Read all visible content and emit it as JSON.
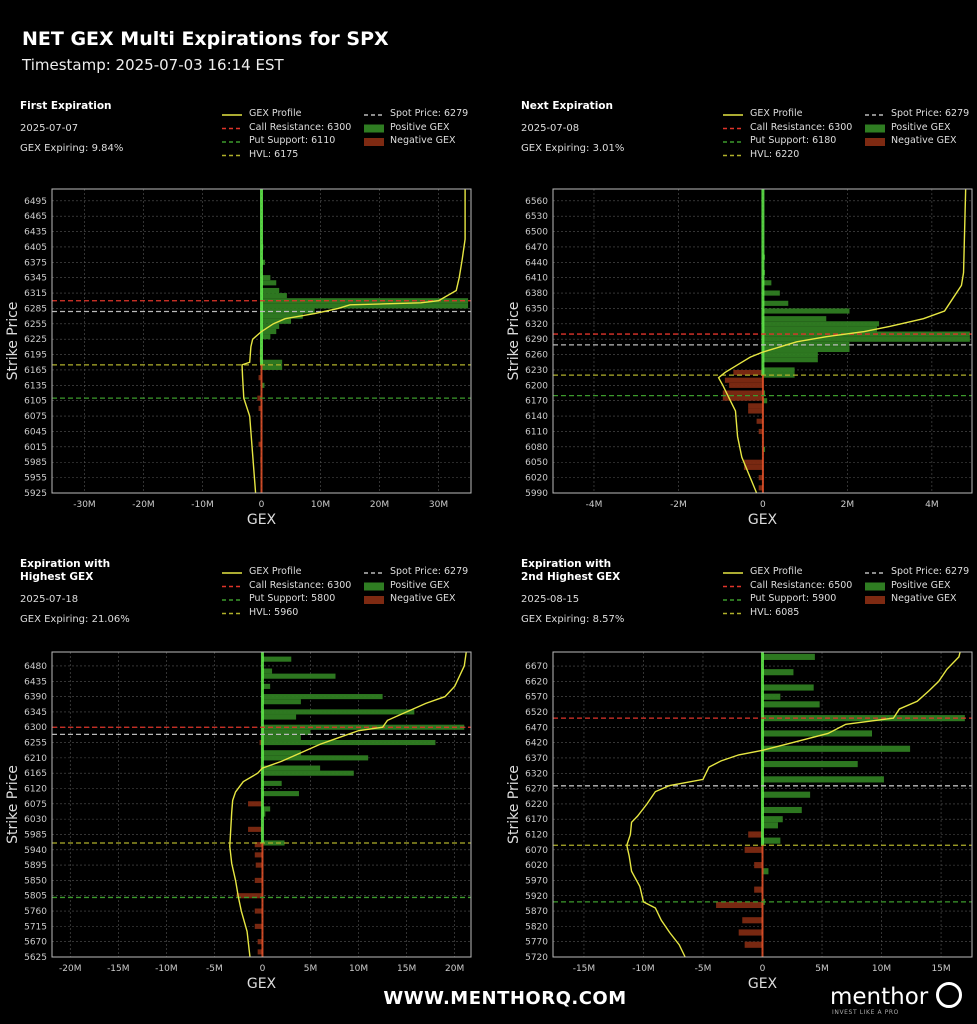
{
  "header": {
    "title": "NET GEX Multi Expirations for SPX",
    "timestamp": "Timestamp: 2025-07-03 16:14 EST"
  },
  "footer": {
    "url": "WWW.MENTHORQ.COM",
    "logo": "menthor",
    "tagline": "INVEST LIKE A PRO"
  },
  "colors": {
    "positive": "#2f7d22",
    "positive_light": "#62ee4c",
    "negative": "#7e2a12",
    "negative_light": "#e8532a",
    "profile": "#e6e642",
    "call_resistance": "#e0342a",
    "put_support": "#3c9a2c",
    "hvl": "#b0b02a",
    "spot": "#bbbbbb",
    "grid": "#555555"
  },
  "chart_data": [
    {
      "type": "bar",
      "panel_title": [
        "First Expiration"
      ],
      "date": "2025-07-07",
      "gex_expiring": "GEX Expiring: 9.84%",
      "xlabel": "GEX",
      "ylabel": "Strike Price",
      "xlim": [
        -35.5,
        35.5
      ],
      "ylim": [
        5925,
        6518
      ],
      "grid": true,
      "legend": "top",
      "xticks": [
        -30,
        -20,
        -10,
        0,
        10,
        20,
        30
      ],
      "xtick_labels": [
        "-30M",
        "-20M",
        "-10M",
        "0",
        "10M",
        "20M",
        "30M"
      ],
      "yticks": [
        5925,
        5955,
        5985,
        6015,
        6045,
        6075,
        6105,
        6135,
        6165,
        6195,
        6225,
        6255,
        6285,
        6315,
        6345,
        6375,
        6405,
        6435,
        6465,
        6495
      ],
      "legend_labels": {
        "profile": "GEX Profile",
        "call": "Call Resistance: 6300",
        "put": "Put Support: 6110",
        "hvl": "HVL: 6175",
        "spot": "Spot Price: 6279",
        "pos": "Positive GEX",
        "neg": "Negative GEX"
      },
      "levels": {
        "call_resistance": 6300,
        "put_support": 6110,
        "hvl": 6175,
        "spot": 6279
      },
      "bin": 10,
      "bars": [
        [
          6405,
          0.3
        ],
        [
          6375,
          0.6
        ],
        [
          6345,
          1.5
        ],
        [
          6335,
          2.5
        ],
        [
          6320,
          3
        ],
        [
          6310,
          4.3
        ],
        [
          6300,
          35
        ],
        [
          6290,
          35
        ],
        [
          6280,
          9
        ],
        [
          6270,
          7
        ],
        [
          6260,
          5
        ],
        [
          6250,
          3
        ],
        [
          6240,
          2.5
        ],
        [
          6230,
          1.5
        ],
        [
          6180,
          3.5
        ],
        [
          6170,
          3.5
        ],
        [
          6135,
          0.5
        ],
        [
          6200,
          -0.3
        ],
        [
          6185,
          -0.3
        ],
        [
          6150,
          -0.5
        ],
        [
          6110,
          -0.7
        ],
        [
          6090,
          -0.5
        ],
        [
          6020,
          -0.5
        ],
        [
          5990,
          -0.2
        ]
      ],
      "profile": [
        [
          5925,
          -1
        ],
        [
          6000,
          -1.5
        ],
        [
          6075,
          -2
        ],
        [
          6110,
          -3
        ],
        [
          6150,
          -3.2
        ],
        [
          6175,
          -3.3
        ],
        [
          6180,
          -2
        ],
        [
          6210,
          -1.8
        ],
        [
          6225,
          -1.5
        ],
        [
          6240,
          0
        ],
        [
          6255,
          2
        ],
        [
          6265,
          4
        ],
        [
          6275,
          9
        ],
        [
          6285,
          13
        ],
        [
          6292,
          15
        ],
        [
          6296,
          27
        ],
        [
          6300,
          30
        ],
        [
          6320,
          33
        ],
        [
          6345,
          33.5
        ],
        [
          6380,
          34
        ],
        [
          6420,
          34.5
        ],
        [
          6518,
          34.5
        ]
      ]
    },
    {
      "type": "bar",
      "panel_title": [
        "Next Expiration"
      ],
      "date": "2025-07-08",
      "gex_expiring": "GEX Expiring: 3.01%",
      "xlabel": "GEX",
      "ylabel": "Strike Price",
      "xlim": [
        -4.97,
        4.95
      ],
      "ylim": [
        5990,
        6583
      ],
      "grid": true,
      "legend": "top",
      "xticks": [
        -4,
        -2,
        0,
        2,
        4
      ],
      "xtick_labels": [
        "-4M",
        "-2M",
        "0",
        "2M",
        "4M"
      ],
      "yticks": [
        5990,
        6020,
        6050,
        6080,
        6110,
        6140,
        6170,
        6200,
        6230,
        6260,
        6290,
        6320,
        6350,
        6380,
        6410,
        6440,
        6470,
        6500,
        6530,
        6560
      ],
      "legend_labels": {
        "profile": "GEX Profile",
        "call": "Call Resistance: 6300",
        "put": "Put Support: 6180",
        "hvl": "HVL: 6220",
        "spot": "Spot Price: 6279",
        "pos": "Positive GEX",
        "neg": "Negative GEX"
      },
      "levels": {
        "call_resistance": 6300,
        "put_support": 6180,
        "hvl": 6220,
        "spot": 6279
      },
      "bin": 10,
      "bars": [
        [
          6450,
          0.05
        ],
        [
          6420,
          0.05
        ],
        [
          6400,
          0.2
        ],
        [
          6380,
          0.4
        ],
        [
          6360,
          0.6
        ],
        [
          6345,
          2.05
        ],
        [
          6330,
          1.5
        ],
        [
          6320,
          2.75
        ],
        [
          6310,
          2.7
        ],
        [
          6300,
          4.9
        ],
        [
          6290,
          4.9
        ],
        [
          6280,
          2.05
        ],
        [
          6270,
          2.05
        ],
        [
          6260,
          1.3
        ],
        [
          6250,
          1.3
        ],
        [
          6230,
          0.75
        ],
        [
          6220,
          0.75
        ],
        [
          6185,
          0.05
        ],
        [
          6170,
          0.1
        ],
        [
          6075,
          0.05
        ],
        [
          6225,
          -0.7
        ],
        [
          6210,
          -0.9
        ],
        [
          6200,
          -0.8
        ],
        [
          6185,
          -0.95
        ],
        [
          6175,
          -0.95
        ],
        [
          6160,
          -0.35
        ],
        [
          6150,
          -0.35
        ],
        [
          6130,
          -0.15
        ],
        [
          6110,
          -0.1
        ],
        [
          6050,
          -0.45
        ],
        [
          6040,
          -0.45
        ],
        [
          6020,
          -0.1
        ],
        [
          6000,
          -0.1
        ]
      ],
      "profile": [
        [
          5990,
          -0.15
        ],
        [
          6030,
          -0.35
        ],
        [
          6060,
          -0.5
        ],
        [
          6100,
          -0.6
        ],
        [
          6150,
          -0.65
        ],
        [
          6175,
          -0.8
        ],
        [
          6200,
          -0.95
        ],
        [
          6215,
          -1.05
        ],
        [
          6225,
          -0.9
        ],
        [
          6240,
          -0.6
        ],
        [
          6255,
          -0.3
        ],
        [
          6265,
          0
        ],
        [
          6275,
          0.4
        ],
        [
          6285,
          0.8
        ],
        [
          6295,
          1.5
        ],
        [
          6305,
          2.4
        ],
        [
          6315,
          3.0
        ],
        [
          6330,
          3.8
        ],
        [
          6345,
          4.3
        ],
        [
          6370,
          4.5
        ],
        [
          6395,
          4.7
        ],
        [
          6420,
          4.75
        ],
        [
          6583,
          4.8
        ]
      ]
    },
    {
      "type": "bar",
      "panel_title": [
        "Expiration with",
        "Highest GEX"
      ],
      "date": "2025-07-18",
      "gex_expiring": "GEX Expiring: 21.06%",
      "xlabel": "GEX",
      "ylabel": "Strike Price",
      "xlim": [
        -21.9,
        21.7
      ],
      "ylim": [
        5625,
        6521
      ],
      "grid": true,
      "legend": "top",
      "xticks": [
        -20,
        -15,
        -10,
        -5,
        0,
        5,
        10,
        15,
        20
      ],
      "xtick_labels": [
        "-20M",
        "-15M",
        "-10M",
        "-5M",
        "0",
        "5M",
        "10M",
        "15M",
        "20M"
      ],
      "yticks": [
        5625,
        5670,
        5715,
        5760,
        5805,
        5850,
        5895,
        5940,
        5985,
        6030,
        6075,
        6120,
        6165,
        6210,
        6255,
        6300,
        6345,
        6390,
        6435,
        6480
      ],
      "legend_labels": {
        "profile": "GEX Profile",
        "call": "Call Resistance: 6300",
        "put": "Put Support: 5800",
        "hvl": "HVL: 5960",
        "spot": "Spot Price: 6279",
        "pos": "Positive GEX",
        "neg": "Negative GEX"
      },
      "levels": {
        "call_resistance": 6300,
        "put_support": 5800,
        "hvl": 5960,
        "spot": 6279
      },
      "bin": 15,
      "bars": [
        [
          6500,
          3
        ],
        [
          6465,
          1
        ],
        [
          6450,
          7.6
        ],
        [
          6420,
          0.8
        ],
        [
          6390,
          12.5
        ],
        [
          6375,
          4
        ],
        [
          6345,
          15.8
        ],
        [
          6330,
          3.5
        ],
        [
          6300,
          21
        ],
        [
          6285,
          5
        ],
        [
          6270,
          4
        ],
        [
          6255,
          18
        ],
        [
          6225,
          4
        ],
        [
          6210,
          11
        ],
        [
          6180,
          6
        ],
        [
          6165,
          9.5
        ],
        [
          6135,
          2
        ],
        [
          6105,
          3.8
        ],
        [
          6060,
          0.8
        ],
        [
          6045,
          0.3
        ],
        [
          5960,
          2.3
        ],
        [
          6255,
          -0.3
        ],
        [
          6180,
          -0.2
        ],
        [
          6075,
          -1.5
        ],
        [
          6000,
          -1.5
        ],
        [
          5955,
          -0.8
        ],
        [
          5925,
          -0.8
        ],
        [
          5895,
          -0.7
        ],
        [
          5850,
          -0.8
        ],
        [
          5805,
          -2.7
        ],
        [
          5760,
          -0.8
        ],
        [
          5715,
          -0.8
        ],
        [
          5670,
          -0.5
        ],
        [
          5640,
          -0.5
        ]
      ],
      "profile": [
        [
          5625,
          -1.3
        ],
        [
          5700,
          -1.6
        ],
        [
          5760,
          -2.2
        ],
        [
          5800,
          -2.5
        ],
        [
          5850,
          -2.8
        ],
        [
          5900,
          -3.2
        ],
        [
          5950,
          -3.4
        ],
        [
          6000,
          -3.3
        ],
        [
          6050,
          -3.2
        ],
        [
          6085,
          -3.1
        ],
        [
          6110,
          -2.8
        ],
        [
          6140,
          -2.0
        ],
        [
          6165,
          -0.5
        ],
        [
          6180,
          0
        ],
        [
          6200,
          2
        ],
        [
          6225,
          4
        ],
        [
          6250,
          6
        ],
        [
          6270,
          8
        ],
        [
          6290,
          10
        ],
        [
          6300,
          12.5
        ],
        [
          6320,
          13
        ],
        [
          6345,
          15
        ],
        [
          6370,
          17
        ],
        [
          6390,
          19
        ],
        [
          6420,
          20
        ],
        [
          6450,
          20.5
        ],
        [
          6480,
          21
        ],
        [
          6520,
          21.2
        ]
      ]
    },
    {
      "type": "bar",
      "panel_title": [
        "Expiration with",
        "2nd Highest GEX"
      ],
      "date": "2025-08-15",
      "gex_expiring": "GEX Expiring: 8.57%",
      "xlabel": "GEX",
      "ylabel": "Strike Price",
      "xlim": [
        -17.6,
        17.6
      ],
      "ylim": [
        5720,
        6716
      ],
      "grid": true,
      "legend": "top",
      "xticks": [
        -15,
        -10,
        -5,
        0,
        5,
        10,
        15
      ],
      "xtick_labels": [
        "-15M",
        "-10M",
        "-5M",
        "0",
        "5M",
        "10M",
        "15M"
      ],
      "yticks": [
        5720,
        5770,
        5820,
        5870,
        5920,
        5970,
        6020,
        6070,
        6120,
        6170,
        6220,
        6270,
        6320,
        6370,
        6420,
        6470,
        6520,
        6570,
        6620,
        6670
      ],
      "legend_labels": {
        "profile": "GEX Profile",
        "call": "Call Resistance: 6500",
        "put": "Put Support: 5900",
        "hvl": "HVL: 6085",
        "spot": "Spot Price: 6279",
        "pos": "Positive GEX",
        "neg": "Negative GEX"
      },
      "levels": {
        "call_resistance": 6500,
        "put_support": 5900,
        "hvl": 6085,
        "spot": 6279
      },
      "bin": 20,
      "bars": [
        [
          6700,
          4.4
        ],
        [
          6650,
          2.6
        ],
        [
          6600,
          4.3
        ],
        [
          6570,
          1.5
        ],
        [
          6545,
          4.8
        ],
        [
          6500,
          17
        ],
        [
          6450,
          9.2
        ],
        [
          6400,
          12.4
        ],
        [
          6350,
          8
        ],
        [
          6300,
          10.2
        ],
        [
          6250,
          4
        ],
        [
          6200,
          3.3
        ],
        [
          6170,
          1.7
        ],
        [
          6150,
          1.3
        ],
        [
          6100,
          1.5
        ],
        [
          6000,
          0.5
        ],
        [
          5900,
          0.2
        ],
        [
          6120,
          -1.2
        ],
        [
          6070,
          -1.5
        ],
        [
          6020,
          -0.7
        ],
        [
          5940,
          -0.7
        ],
        [
          5890,
          -3.9
        ],
        [
          5840,
          -1.7
        ],
        [
          5800,
          -2
        ],
        [
          5760,
          -1.5
        ]
      ],
      "profile": [
        [
          5720,
          -6.5
        ],
        [
          5760,
          -7
        ],
        [
          5800,
          -7.8
        ],
        [
          5840,
          -8.5
        ],
        [
          5880,
          -9
        ],
        [
          5900,
          -10
        ],
        [
          5950,
          -10.3
        ],
        [
          6000,
          -11
        ],
        [
          6050,
          -11.2
        ],
        [
          6085,
          -11.4
        ],
        [
          6120,
          -11.1
        ],
        [
          6160,
          -11
        ],
        [
          6180,
          -10.5
        ],
        [
          6220,
          -9.7
        ],
        [
          6260,
          -9
        ],
        [
          6280,
          -7.8
        ],
        [
          6300,
          -5
        ],
        [
          6340,
          -4.5
        ],
        [
          6360,
          -3.5
        ],
        [
          6380,
          -2
        ],
        [
          6395,
          0
        ],
        [
          6420,
          2.5
        ],
        [
          6450,
          5.5
        ],
        [
          6480,
          7
        ],
        [
          6500,
          11
        ],
        [
          6530,
          11.5
        ],
        [
          6555,
          13
        ],
        [
          6590,
          14
        ],
        [
          6620,
          14.8
        ],
        [
          6660,
          15.5
        ],
        [
          6700,
          16.5
        ],
        [
          6716,
          16.6
        ]
      ]
    }
  ]
}
